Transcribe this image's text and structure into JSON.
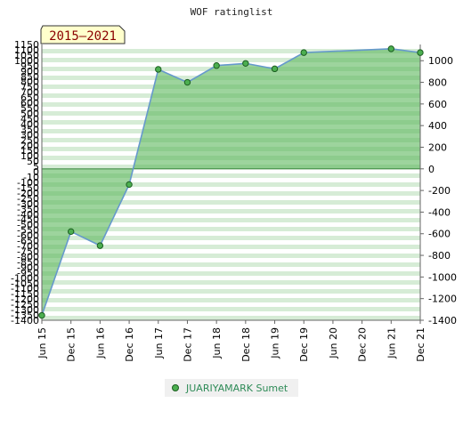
{
  "chart_data": {
    "type": "area",
    "title": "WOF ratinglist",
    "period_badge": "2015–2021",
    "categories": [
      "Jun 15",
      "Dec 15",
      "Jun 16",
      "Dec 16",
      "Jun 17",
      "Dec 17",
      "Jun 18",
      "Dec 18",
      "Jun 19",
      "Dec 19",
      "Jun 20",
      "Dec 20",
      "Jun 21",
      "Dec 21"
    ],
    "series": [
      {
        "name": "JUARIYAMARK Sumet",
        "values": [
          -1355,
          -580,
          -710,
          -145,
          920,
          800,
          955,
          975,
          925,
          1075,
          null,
          null,
          1110,
          1075
        ],
        "markers": [
          true,
          true,
          true,
          true,
          true,
          true,
          true,
          true,
          true,
          true,
          false,
          false,
          true,
          true
        ]
      }
    ],
    "ylim": [
      -1400,
      1150
    ],
    "left_ticks": [
      1150,
      1100,
      1050,
      1000,
      950,
      900,
      850,
      800,
      750,
      700,
      650,
      600,
      550,
      500,
      450,
      400,
      350,
      300,
      250,
      200,
      150,
      100,
      50,
      5,
      0,
      -10,
      -100,
      -150,
      -200,
      -250,
      -300,
      -350,
      -400,
      -450,
      -500,
      -550,
      -600,
      -650,
      -700,
      -750,
      -800,
      -850,
      -900,
      -950,
      -1000,
      -1050,
      -1100,
      -1150,
      -1200,
      -1250,
      -1300,
      -1350,
      -1400
    ],
    "right_ticks": [
      1000,
      800,
      600,
      400,
      200,
      0,
      -200,
      -400,
      -600,
      -800,
      -1000,
      -1200,
      -1400
    ],
    "legend_position": "bottom",
    "colors": {
      "line": "#6699cc",
      "fill": "#5cb85c",
      "marker": "#4caf50",
      "badge_bg": "#ffffcc",
      "legend_text": "#2e8b57"
    }
  }
}
